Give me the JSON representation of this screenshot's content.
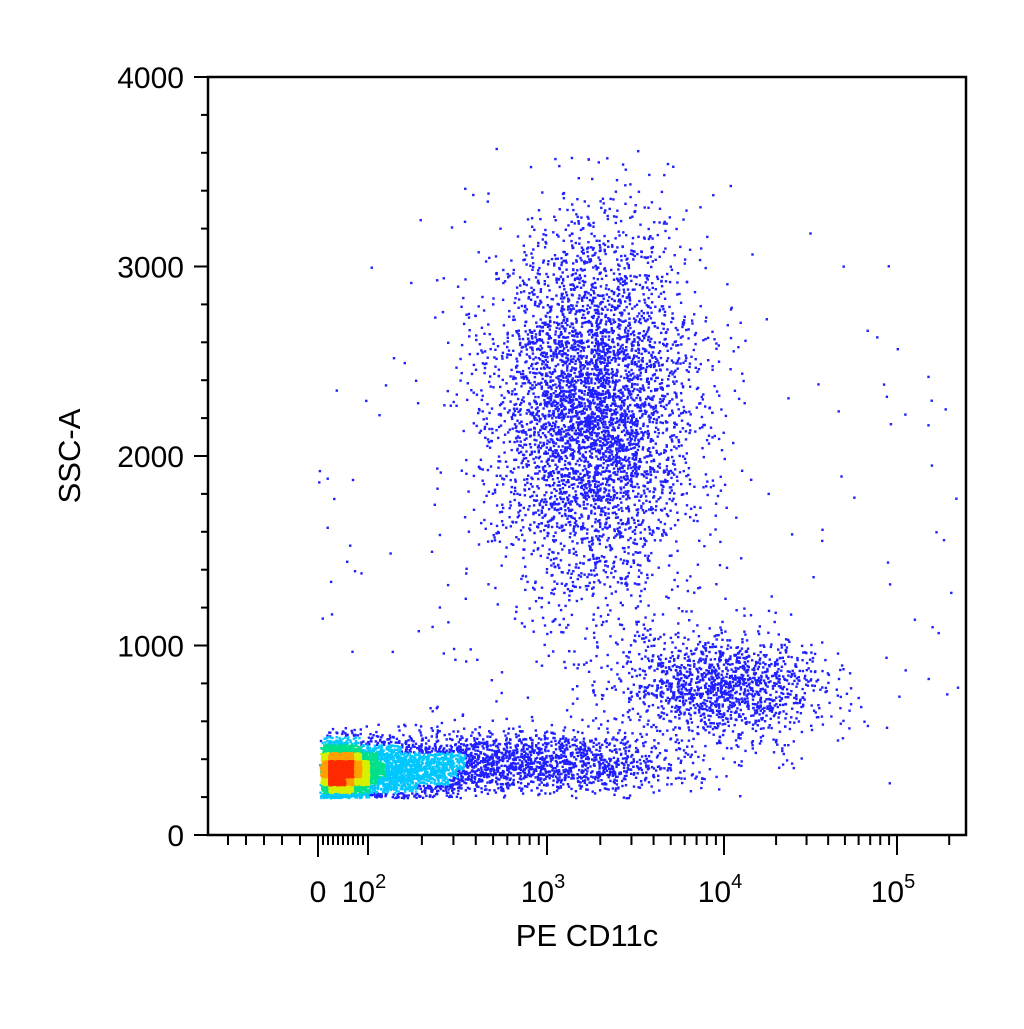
{
  "chart_data": {
    "type": "scatter",
    "subtype": "flow-cytometry density dot plot (pseudocolor)",
    "xlabel": "PE CD11c",
    "ylabel": "SSC-A",
    "x_scale": "biexponential (linear near 0, log above)",
    "y_scale": "linear",
    "ylim": [
      0,
      4000
    ],
    "xlim": [
      -60,
      250000
    ],
    "x_ticks": [
      {
        "value": 0,
        "label": "0",
        "sup": ""
      },
      {
        "value": 100,
        "label": "10",
        "sup": "2"
      },
      {
        "value": 1000,
        "label": "10",
        "sup": "3"
      },
      {
        "value": 10000,
        "label": "10",
        "sup": "4"
      },
      {
        "value": 100000,
        "label": "10",
        "sup": "5"
      }
    ],
    "y_ticks": [
      {
        "value": 0,
        "label": "0"
      },
      {
        "value": 1000,
        "label": "1000"
      },
      {
        "value": 2000,
        "label": "2000"
      },
      {
        "value": 3000,
        "label": "3000"
      },
      {
        "value": 4000,
        "label": "4000"
      }
    ],
    "grid": false,
    "legend": "none",
    "color_scale": [
      "#1f1fff",
      "#00c8ff",
      "#00e08a",
      "#d8f000",
      "#ffa000",
      "#ff2a00"
    ],
    "populations": [
      {
        "x_center": 60,
        "x_log_spread": 0.38,
        "y_center": 340,
        "y_spread": 75,
        "weight": 0.42
      },
      {
        "x_center": 800,
        "x_log_spread": 0.45,
        "y_center": 390,
        "y_spread": 85,
        "weight": 0.12
      },
      {
        "x_center": 1800,
        "x_log_spread": 0.28,
        "y_center": 2250,
        "y_spread": 480,
        "weight": 0.34
      },
      {
        "x_center": 10000,
        "x_log_spread": 0.3,
        "y_center": 780,
        "y_spread": 140,
        "weight": 0.1
      },
      {
        "x_center": 5000,
        "x_log_spread": 1.2,
        "y_center": 1500,
        "y_spread": 900,
        "weight": 0.02
      }
    ]
  }
}
